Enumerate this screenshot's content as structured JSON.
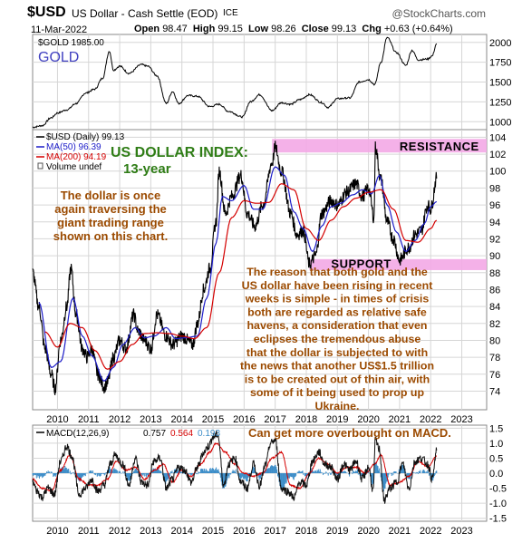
{
  "header": {
    "symbol": "$USD",
    "name": "US Dollar - Cash Settle (EOD)",
    "exchange": "ICE",
    "watermark": "@StockCharts.com",
    "date": "11-Mar-2022",
    "ohlc": [
      {
        "label": "Open",
        "value": "98.47"
      },
      {
        "label": "High",
        "value": "99.15"
      },
      {
        "label": "Low",
        "value": "98.26"
      },
      {
        "label": "Close",
        "value": "99.13"
      },
      {
        "label": "Chg",
        "value": "+0.63 (+0.64%)"
      }
    ]
  },
  "colors": {
    "price": "#000000",
    "ma50": "#1c1cc8",
    "ma200": "#d40000",
    "macd_line": "#111111",
    "macd_signal": "#d40000",
    "macd_hist": "#3c8dc8",
    "annotation_brown": "#9b4a00",
    "annotation_green": "#2f7d16",
    "gold_label": "#4040c0",
    "zone_pink": "#f3a8e6",
    "grid": "#d6d6d6",
    "frame": "#888888"
  },
  "chart_data": [
    {
      "type": "line",
      "panel": "gold",
      "legend": "$GOLD 1985.00",
      "label": "GOLD",
      "xlim": [
        2009.2,
        2023.8
      ],
      "ylim": [
        900,
        2100
      ],
      "y_ticks": [
        "2000",
        "1750",
        "1500",
        "1250",
        "1000"
      ],
      "y_tick_values": [
        2000,
        1750,
        1500,
        1250,
        1000
      ],
      "series": [
        {
          "x": [
            2009.2,
            2009.5,
            2009.8,
            2010.0,
            2010.3,
            2010.6,
            2010.9,
            2011.2,
            2011.45,
            2011.67,
            2011.8,
            2012.0,
            2012.3,
            2012.7,
            2012.9,
            2013.2,
            2013.5,
            2013.7,
            2013.9,
            2014.2,
            2014.5,
            2014.9,
            2015.2,
            2015.5,
            2015.95,
            2016.2,
            2016.5,
            2016.9,
            2017.2,
            2017.5,
            2017.8,
            2018.1,
            2018.5,
            2018.7,
            2019.0,
            2019.4,
            2019.7,
            2020.0,
            2020.2,
            2020.4,
            2020.6,
            2020.9,
            2021.2,
            2021.4,
            2021.6,
            2021.9,
            2022.05,
            2022.19
          ],
          "values": [
            930,
            950,
            1050,
            1110,
            1150,
            1230,
            1360,
            1410,
            1550,
            1890,
            1650,
            1700,
            1610,
            1720,
            1700,
            1580,
            1230,
            1380,
            1230,
            1330,
            1320,
            1190,
            1220,
            1130,
            1060,
            1250,
            1340,
            1140,
            1240,
            1220,
            1280,
            1340,
            1240,
            1180,
            1290,
            1300,
            1500,
            1530,
            1470,
            1750,
            2060,
            1870,
            1710,
            1900,
            1780,
            1790,
            1830,
            1985
          ]
        }
      ]
    },
    {
      "type": "line",
      "panel": "price",
      "title": "US DOLLAR INDEX:",
      "subtitle": "13-year",
      "legend": [
        {
          "name": "$USD (Daily) 99.13"
        },
        {
          "name": "MA(50) 96.39"
        },
        {
          "name": "MA(200) 94.19"
        },
        {
          "name": "Volume undef"
        }
      ],
      "xlim": [
        2009.2,
        2023.8
      ],
      "ylim": [
        71.8,
        104.9
      ],
      "y_ticks": [
        "104",
        "102",
        "100",
        "98",
        "96",
        "94",
        "92",
        "90",
        "88",
        "86",
        "84",
        "82",
        "80",
        "78",
        "76",
        "74"
      ],
      "y_tick_values": [
        104,
        102,
        100,
        98,
        96,
        94,
        92,
        90,
        88,
        86,
        84,
        82,
        80,
        78,
        76,
        74
      ],
      "x_ticks": [
        "2010",
        "2011",
        "2012",
        "2013",
        "2014",
        "2015",
        "2016",
        "2017",
        "2018",
        "2019",
        "2020",
        "2021",
        "2022",
        "2023"
      ],
      "x_tick_values": [
        2010,
        2011,
        2012,
        2013,
        2014,
        2015,
        2016,
        2017,
        2018,
        2019,
        2020,
        2021,
        2022,
        2023
      ],
      "zones": [
        {
          "label": "RESISTANCE",
          "x0": 2016.9,
          "x1": 2023.8,
          "y0": 102.2,
          "y1": 103.8
        },
        {
          "label": "SUPPORT",
          "x0": 2018.1,
          "x1": 2023.8,
          "y0": 88.3,
          "y1": 89.6
        }
      ],
      "series": [
        {
          "name": "$USD",
          "x": [
            2009.2,
            2009.4,
            2009.6,
            2009.8,
            2009.92,
            2010.1,
            2010.3,
            2010.43,
            2010.6,
            2010.8,
            2010.95,
            2011.1,
            2011.3,
            2011.5,
            2011.6,
            2011.8,
            2012.0,
            2012.2,
            2012.45,
            2012.6,
            2012.8,
            2013.0,
            2013.2,
            2013.5,
            2013.7,
            2014.0,
            2014.35,
            2014.5,
            2014.7,
            2014.9,
            2015.1,
            2015.2,
            2015.4,
            2015.6,
            2015.9,
            2016.1,
            2016.35,
            2016.6,
            2016.9,
            2017.0,
            2017.2,
            2017.5,
            2017.7,
            2017.9,
            2018.1,
            2018.3,
            2018.5,
            2018.8,
            2019.0,
            2019.3,
            2019.6,
            2019.8,
            2020.0,
            2020.18,
            2020.22,
            2020.4,
            2020.6,
            2020.8,
            2021.0,
            2021.3,
            2021.5,
            2021.7,
            2021.9,
            2022.0,
            2022.19
          ],
          "values": [
            88,
            84,
            79,
            76,
            74.3,
            80,
            84,
            88.5,
            83,
            79,
            78,
            79,
            76,
            74.5,
            75,
            78,
            80,
            79,
            83,
            81,
            80,
            79,
            83,
            80.5,
            79.5,
            80.5,
            79.5,
            82,
            86,
            88.5,
            94,
            100,
            95,
            97,
            99.5,
            95,
            93.5,
            96,
            101,
            102.8,
            100,
            95,
            92.5,
            93,
            89,
            90,
            95,
            96.5,
            96,
            97.5,
            98.5,
            97,
            98,
            94.5,
            102.8,
            99,
            94,
            92,
            89.5,
            91,
            92.5,
            93,
            96,
            95.5,
            99.13
          ]
        },
        {
          "name": "MA(50)",
          "x": [
            2009.4,
            2009.8,
            2010.1,
            2010.5,
            2010.8,
            2011.1,
            2011.5,
            2011.8,
            2012.1,
            2012.5,
            2012.8,
            2013.1,
            2013.5,
            2013.8,
            2014.1,
            2014.5,
            2014.8,
            2015.1,
            2015.3,
            2015.6,
            2016.0,
            2016.3,
            2016.6,
            2017.0,
            2017.3,
            2017.6,
            2017.9,
            2018.2,
            2018.5,
            2018.8,
            2019.1,
            2019.5,
            2019.8,
            2020.1,
            2020.35,
            2020.6,
            2020.9,
            2021.2,
            2021.5,
            2021.8,
            2022.0,
            2022.19
          ],
          "values": [
            84.5,
            76.8,
            77.5,
            85,
            80.5,
            78.2,
            75.2,
            76.8,
            79.5,
            81.5,
            80.3,
            80.5,
            81.5,
            80.2,
            80.3,
            80.5,
            85,
            91.5,
            97,
            96.5,
            98.3,
            95.5,
            95.5,
            100.5,
            99.5,
            95.2,
            93.2,
            90.5,
            93.5,
            95.8,
            96.2,
            97.2,
            97.8,
            97.3,
            99.5,
            96,
            92.8,
            90.5,
            91.8,
            93.8,
            95.8,
            96.39
          ]
        },
        {
          "name": "MA(200)",
          "x": [
            2009.6,
            2010.0,
            2010.4,
            2010.8,
            2011.2,
            2011.6,
            2012.0,
            2012.4,
            2012.8,
            2013.2,
            2013.6,
            2014.0,
            2014.4,
            2014.8,
            2015.2,
            2015.6,
            2016.0,
            2016.4,
            2016.8,
            2017.2,
            2017.6,
            2018.0,
            2018.4,
            2018.8,
            2019.2,
            2019.6,
            2020.0,
            2020.4,
            2020.8,
            2021.2,
            2021.6,
            2022.0,
            2022.19
          ],
          "values": [
            81,
            79.2,
            82,
            81.5,
            78.8,
            76.6,
            77.5,
            79.5,
            80.8,
            80.9,
            80.8,
            80.5,
            80.2,
            81.5,
            88,
            94.5,
            96.5,
            96.2,
            96.3,
            98.5,
            97.8,
            93.2,
            91.8,
            94.2,
            95.8,
            96.8,
            97.5,
            97.8,
            95.5,
            91.8,
            91.6,
            93.2,
            94.19
          ]
        }
      ],
      "annotations": [
        "The dollar is once",
        "again traversing the",
        "giant trading range",
        "shown on this chart."
      ],
      "commentary": [
        "The reason that both gold and the",
        "US dollar have been rising in recent",
        "weeks is simple - in times of crisis",
        "both are regarded as relative safe",
        "havens, a consideration that even",
        "eclipses the tremendous abuse",
        "that the dollar is subjected to with",
        "the news that another US$1.5 trillion",
        "is to be created out of thin air, with",
        "some of it being used to prop up",
        "Ukraine."
      ]
    },
    {
      "type": "line",
      "panel": "macd",
      "legend": {
        "label": "MACD(12,26,9)",
        "macd": "0.757",
        "signal": "0.564",
        "histogram": "0.193"
      },
      "note": "Can get more overbought on MACD.",
      "xlim": [
        2009.2,
        2023.8
      ],
      "ylim": [
        -1.6,
        1.6
      ],
      "y_ticks": [
        "1.5",
        "1.0",
        "0.5",
        "0.0",
        "-0.5",
        "-1.0",
        "-1.5"
      ],
      "y_tick_values": [
        1.5,
        1.0,
        0.5,
        0.0,
        -0.5,
        -1.0,
        -1.5
      ],
      "x_ticks": [
        "2010",
        "2011",
        "2012",
        "2013",
        "2014",
        "2015",
        "2016",
        "2017",
        "2018",
        "2019",
        "2020",
        "2021",
        "2022",
        "2023"
      ],
      "x_tick_values": [
        2010,
        2011,
        2012,
        2013,
        2014,
        2015,
        2016,
        2017,
        2018,
        2019,
        2020,
        2021,
        2022,
        2023
      ],
      "series": [
        {
          "name": "MACD",
          "x": [
            2009.2,
            2009.35,
            2009.5,
            2009.7,
            2009.9,
            2010.1,
            2010.3,
            2010.45,
            2010.7,
            2010.9,
            2011.1,
            2011.3,
            2011.5,
            2011.7,
            2011.85,
            2012.1,
            2012.3,
            2012.5,
            2012.7,
            2012.9,
            2013.1,
            2013.3,
            2013.5,
            2013.7,
            2013.9,
            2014.1,
            2014.3,
            2014.5,
            2014.7,
            2014.85,
            2015.0,
            2015.15,
            2015.35,
            2015.5,
            2015.7,
            2015.9,
            2016.1,
            2016.3,
            2016.5,
            2016.7,
            2016.85,
            2017.0,
            2017.2,
            2017.4,
            2017.6,
            2017.8,
            2018.0,
            2018.2,
            2018.4,
            2018.6,
            2018.8,
            2019.0,
            2019.2,
            2019.4,
            2019.6,
            2019.8,
            2020.0,
            2020.15,
            2020.22,
            2020.35,
            2020.5,
            2020.7,
            2020.9,
            2021.1,
            2021.3,
            2021.5,
            2021.7,
            2021.9,
            2022.05,
            2022.19
          ],
          "values": [
            -0.3,
            -0.6,
            -0.8,
            -0.5,
            -0.7,
            0.4,
            0.9,
            0.6,
            -0.7,
            -0.5,
            -0.2,
            -0.6,
            -0.4,
            0.3,
            0.6,
            0.3,
            -0.4,
            0.5,
            -0.3,
            -0.4,
            0.4,
            0.5,
            -0.5,
            -0.2,
            0.2,
            0.1,
            -0.3,
            0.2,
            0.7,
            0.9,
            1.2,
            1.3,
            -0.4,
            0.3,
            0.5,
            -0.3,
            -0.5,
            0.3,
            -0.4,
            0.3,
            1.0,
            1.1,
            -0.5,
            -0.6,
            -0.8,
            -0.3,
            -0.4,
            0.4,
            0.7,
            0.3,
            0.2,
            -0.2,
            0.3,
            0.1,
            0.4,
            -0.2,
            0.2,
            -0.6,
            1.1,
            0.8,
            -0.9,
            -0.5,
            -0.3,
            0.3,
            -0.5,
            0.4,
            0.5,
            0.3,
            -0.2,
            0.757
          ]
        },
        {
          "name": "Signal",
          "x": [
            2009.2,
            2009.5,
            2009.8,
            2010.1,
            2010.4,
            2010.7,
            2011.0,
            2011.3,
            2011.6,
            2011.9,
            2012.2,
            2012.5,
            2012.8,
            2013.1,
            2013.4,
            2013.7,
            2014.0,
            2014.3,
            2014.6,
            2014.9,
            2015.1,
            2015.4,
            2015.7,
            2016.0,
            2016.3,
            2016.6,
            2016.9,
            2017.2,
            2017.5,
            2017.8,
            2018.1,
            2018.4,
            2018.7,
            2019.0,
            2019.3,
            2019.6,
            2019.9,
            2020.2,
            2020.4,
            2020.7,
            2021.0,
            2021.3,
            2021.6,
            2021.9,
            2022.19
          ],
          "values": [
            -0.2,
            -0.5,
            -0.6,
            0.1,
            0.6,
            -0.2,
            -0.4,
            -0.4,
            -0.2,
            0.4,
            0.1,
            0.2,
            -0.2,
            0.1,
            0.3,
            -0.3,
            0.1,
            -0.1,
            0.3,
            0.7,
            1.0,
            0.7,
            0.3,
            0.0,
            -0.1,
            0.0,
            0.5,
            0.7,
            -0.4,
            -0.5,
            0.0,
            0.5,
            0.3,
            0.0,
            0.2,
            0.2,
            0.0,
            0.3,
            0.6,
            -0.4,
            -0.3,
            -0.1,
            0.4,
            0.2,
            0.564
          ]
        }
      ]
    }
  ]
}
